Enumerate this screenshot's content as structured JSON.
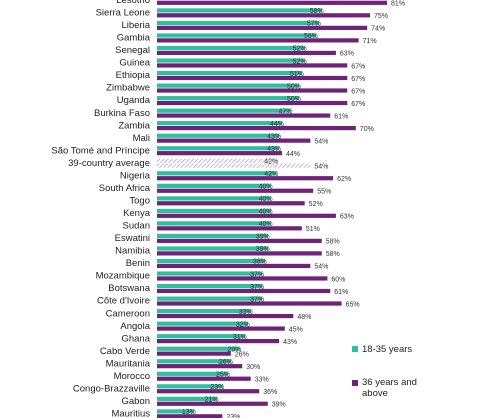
{
  "chart_data": {
    "type": "bar",
    "orientation": "horizontal",
    "value_suffix": "%",
    "categories": [
      "Lesotho",
      "Sierra Leone",
      "Liberia",
      "Gambia",
      "Senegal",
      "Guinea",
      "Ethiopia",
      "Zimbabwe",
      "Uganda",
      "Burkina Faso",
      "Zambia",
      "Mali",
      "São Tomé and Príncipe",
      "39-country average",
      "Nigeria",
      "South Africa",
      "Togo",
      "Kenya",
      "Sudan",
      "Eswatini",
      "Namibia",
      "Benin",
      "Mozambique",
      "Botswana",
      "Côte d'Ivoire",
      "Cameroon",
      "Angola",
      "Ghana",
      "Cabo Verde",
      "Mauritania",
      "Morocco",
      "Congo-Brazzaville",
      "Gabon",
      "Mauritius",
      ""
    ],
    "series": [
      {
        "name": "18-35 years",
        "color": "#2fbf9f",
        "values": [
          null,
          58,
          57,
          56,
          52,
          52,
          51,
          50,
          50,
          47,
          44,
          43,
          43,
          42,
          42,
          40,
          40,
          40,
          40,
          39,
          39,
          38,
          37,
          37,
          37,
          33,
          32,
          31,
          29,
          26,
          25,
          23,
          21,
          13,
          null
        ]
      },
      {
        "name": "36 years and above",
        "color": "#6e2278",
        "values": [
          81,
          75,
          74,
          71,
          63,
          67,
          67,
          67,
          67,
          61,
          70,
          54,
          44,
          54,
          62,
          55,
          52,
          63,
          51,
          58,
          58,
          54,
          60,
          61,
          65,
          48,
          45,
          43,
          26,
          30,
          33,
          36,
          39,
          23,
          null
        ]
      }
    ],
    "highlight_category": "39-country average",
    "xlim": [
      0,
      100
    ],
    "legend_position": "right"
  },
  "legend": {
    "young_label": "18-35 years",
    "old_label": "36 years and above"
  }
}
